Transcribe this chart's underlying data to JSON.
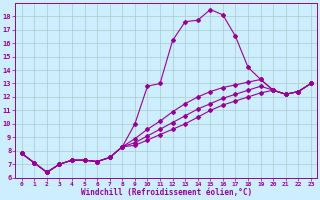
{
  "xlabel": "Windchill (Refroidissement éolien,°C)",
  "bg_color": "#cceeff",
  "line_color": "#990099",
  "grid_color": "#aacccc",
  "xlim": [
    -0.5,
    23.5
  ],
  "ylim": [
    6,
    19
  ],
  "xticks": [
    0,
    1,
    2,
    3,
    4,
    5,
    6,
    7,
    8,
    9,
    10,
    11,
    12,
    13,
    14,
    15,
    16,
    17,
    18,
    19,
    20,
    21,
    22,
    23
  ],
  "yticks": [
    6,
    7,
    8,
    9,
    10,
    11,
    12,
    13,
    14,
    15,
    16,
    17,
    18
  ],
  "series1_x": [
    0,
    1,
    2,
    3,
    4,
    5,
    6,
    7,
    8,
    9,
    10,
    11,
    12,
    13,
    14,
    15,
    16,
    17,
    18,
    19,
    20,
    21,
    22,
    23
  ],
  "series1_y": [
    7.8,
    7.1,
    6.4,
    7.0,
    7.3,
    7.3,
    7.2,
    7.5,
    8.3,
    10.0,
    12.8,
    13.0,
    16.2,
    17.6,
    17.7,
    18.5,
    18.1,
    16.5,
    14.2,
    13.3,
    12.5,
    12.2,
    12.4,
    13.0
  ],
  "series2_x": [
    0,
    1,
    2,
    3,
    4,
    5,
    6,
    7,
    8,
    9,
    10,
    11,
    12,
    13,
    14,
    15,
    16,
    17,
    18,
    19,
    20,
    21,
    22,
    23
  ],
  "series2_y": [
    7.8,
    7.1,
    6.4,
    7.0,
    7.3,
    7.3,
    7.2,
    7.5,
    8.3,
    8.9,
    9.6,
    10.2,
    10.9,
    11.5,
    12.0,
    12.4,
    12.7,
    12.9,
    13.1,
    13.3,
    12.5,
    12.2,
    12.4,
    13.0
  ],
  "series3_x": [
    0,
    1,
    2,
    3,
    4,
    5,
    6,
    7,
    8,
    9,
    10,
    11,
    12,
    13,
    14,
    15,
    16,
    17,
    18,
    19,
    20,
    21,
    22,
    23
  ],
  "series3_y": [
    7.8,
    7.1,
    6.4,
    7.0,
    7.3,
    7.3,
    7.2,
    7.5,
    8.3,
    8.6,
    9.1,
    9.6,
    10.1,
    10.6,
    11.1,
    11.5,
    11.9,
    12.2,
    12.5,
    12.8,
    12.5,
    12.2,
    12.4,
    13.0
  ],
  "series4_x": [
    0,
    1,
    2,
    3,
    4,
    5,
    6,
    7,
    8,
    9,
    10,
    11,
    12,
    13,
    14,
    15,
    16,
    17,
    18,
    19,
    20,
    21,
    22,
    23
  ],
  "series4_y": [
    7.8,
    7.1,
    6.4,
    7.0,
    7.3,
    7.3,
    7.2,
    7.5,
    8.3,
    8.4,
    8.8,
    9.2,
    9.6,
    10.0,
    10.5,
    11.0,
    11.4,
    11.7,
    12.0,
    12.3,
    12.5,
    12.2,
    12.4,
    13.0
  ],
  "marker": "D",
  "markersize": 2,
  "linewidth": 0.8
}
